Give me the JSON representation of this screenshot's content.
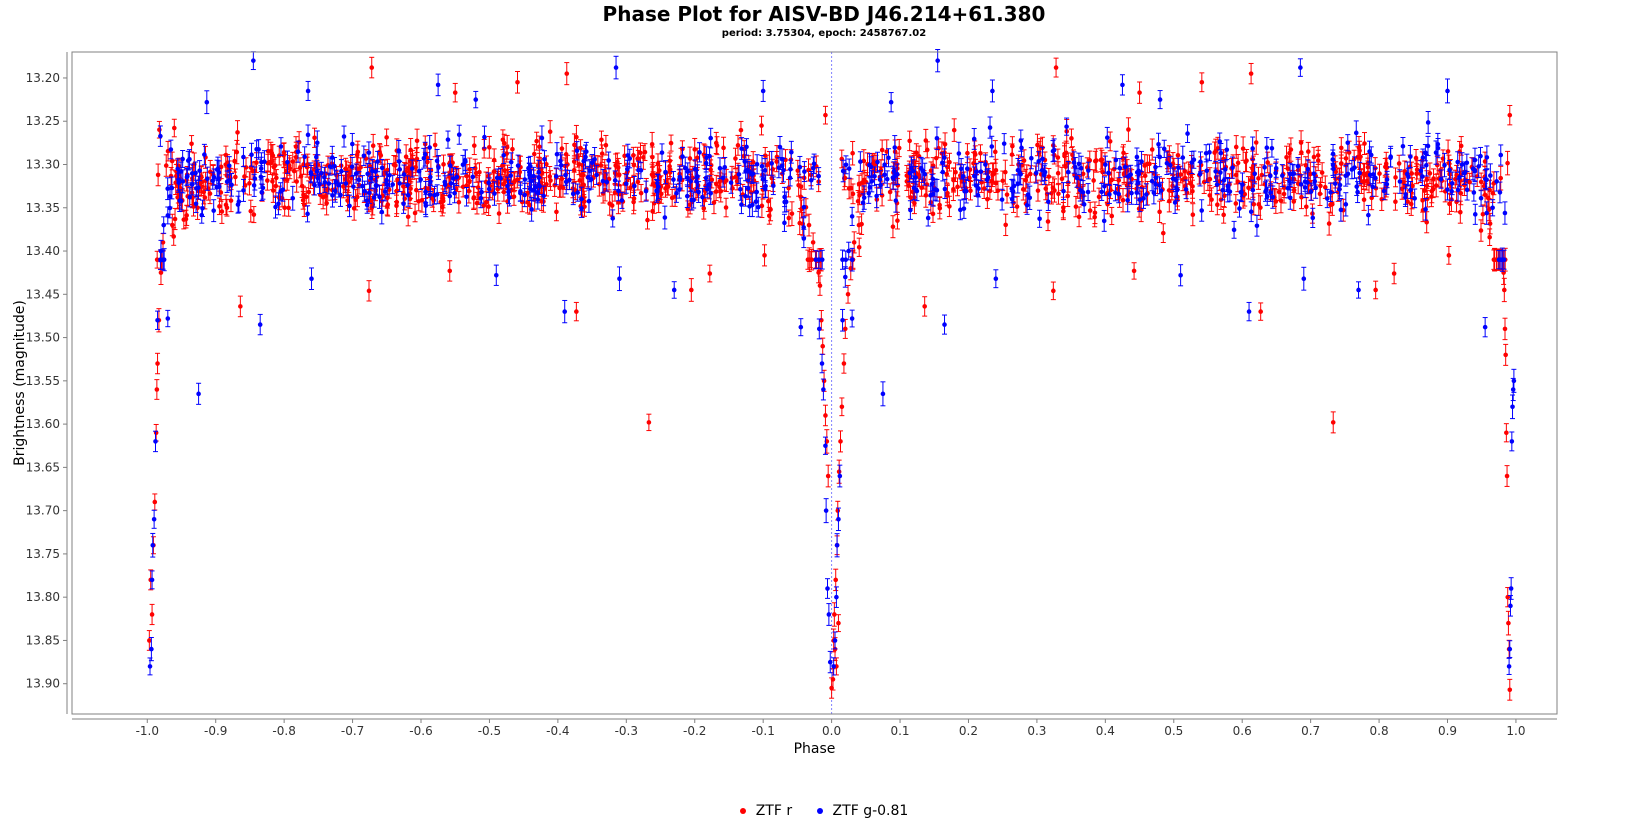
{
  "chart_data": {
    "type": "scatter",
    "title": "Phase Plot for AISV-BD J46.214+61.380",
    "subtitle": "period: 3.75304, epoch: 2458767.02",
    "xlabel": "Phase",
    "ylabel": "Brightness (magnitude)",
    "xlim": [
      -1.11,
      1.06
    ],
    "ylim": [
      13.17,
      13.935
    ],
    "y_inverted": true,
    "x_ticks": [
      "-1.0",
      "-0.9",
      "-0.8",
      "-0.7",
      "-0.6",
      "-0.5",
      "-0.4",
      "-0.3",
      "-0.2",
      "-0.1",
      "0.0",
      "0.1",
      "0.2",
      "0.3",
      "0.4",
      "0.5",
      "0.6",
      "0.7",
      "0.8",
      "0.9",
      "1.0"
    ],
    "y_ticks": [
      "13.20",
      "13.25",
      "13.30",
      "13.35",
      "13.40",
      "13.45",
      "13.50",
      "13.55",
      "13.60",
      "13.65",
      "13.70",
      "13.75",
      "13.80",
      "13.85",
      "13.90"
    ],
    "grid": false,
    "legend_position": "bottom",
    "reference_line_x": 0.0,
    "colors": {
      "ztf_r": "#ff0000",
      "ztf_g": "#0000ff",
      "refline": "#8080ff",
      "axis": "#808080"
    },
    "series": [
      {
        "name": "ZTF r",
        "color": "#ff0000",
        "baseline": 13.315,
        "scatter": 0.03,
        "points": [
          [
            0.0,
            13.905
          ],
          [
            0.003,
            13.85
          ],
          [
            0.004,
            13.82
          ],
          [
            0.006,
            13.78
          ],
          [
            0.008,
            13.74
          ],
          [
            0.009,
            13.7
          ],
          [
            0.011,
            13.655
          ],
          [
            0.013,
            13.62
          ],
          [
            0.015,
            13.58
          ],
          [
            0.018,
            13.53
          ],
          [
            0.02,
            13.49
          ],
          [
            0.024,
            13.45
          ],
          [
            0.028,
            13.42
          ],
          [
            0.033,
            13.39
          ],
          [
            0.04,
            13.37
          ],
          [
            -0.005,
            13.66
          ],
          [
            -0.007,
            13.62
          ],
          [
            -0.009,
            13.59
          ],
          [
            -0.011,
            13.55
          ],
          [
            -0.013,
            13.51
          ],
          [
            -0.015,
            13.48
          ],
          [
            -0.017,
            13.44
          ],
          [
            -0.019,
            13.425
          ],
          [
            -0.022,
            13.41
          ],
          [
            -0.027,
            13.39
          ],
          [
            -0.033,
            13.37
          ],
          [
            0.007,
            13.88
          ],
          [
            0.005,
            13.86
          ],
          [
            0.002,
            13.895
          ],
          [
            0.01,
            13.83
          ],
          [
            -0.864,
            13.464
          ],
          [
            -0.676,
            13.446
          ],
          [
            -0.558,
            13.423
          ],
          [
            -0.55,
            13.217
          ],
          [
            -0.373,
            13.47
          ],
          [
            -0.267,
            13.598
          ],
          [
            -0.205,
            13.445
          ],
          [
            -0.178,
            13.426
          ],
          [
            -0.672,
            13.188
          ],
          [
            -0.387,
            13.195
          ],
          [
            -0.459,
            13.205
          ],
          [
            -0.098,
            13.405
          ],
          [
            -0.009,
            13.243
          ],
          [
            0.136,
            13.464
          ],
          [
            0.324,
            13.446
          ],
          [
            0.442,
            13.423
          ],
          [
            0.45,
            13.217
          ],
          [
            0.627,
            13.47
          ],
          [
            0.733,
            13.598
          ],
          [
            0.795,
            13.445
          ],
          [
            0.822,
            13.426
          ],
          [
            0.328,
            13.188
          ],
          [
            0.613,
            13.195
          ],
          [
            0.541,
            13.205
          ],
          [
            0.902,
            13.405
          ],
          [
            0.991,
            13.243
          ],
          [
            -0.995,
            13.78
          ],
          [
            -0.993,
            13.82
          ],
          [
            -0.991,
            13.74
          ],
          [
            -0.989,
            13.69
          ],
          [
            -0.987,
            13.61
          ],
          [
            -0.986,
            13.56
          ],
          [
            -0.985,
            13.53
          ],
          [
            -0.983,
            13.48
          ],
          [
            -0.98,
            13.425
          ],
          [
            -0.977,
            13.39
          ],
          [
            -0.997,
            13.85
          ],
          [
            0.991,
            13.907
          ],
          [
            0.99,
            13.86
          ],
          [
            0.989,
            13.83
          ],
          [
            0.988,
            13.8
          ],
          [
            0.987,
            13.66
          ],
          [
            0.986,
            13.61
          ],
          [
            0.985,
            13.52
          ],
          [
            0.984,
            13.49
          ],
          [
            0.983,
            13.445
          ],
          [
            0.982,
            13.425
          ]
        ]
      },
      {
        "name": "ZTF g-0.81",
        "color": "#0000ff",
        "baseline": 13.315,
        "scatter": 0.03,
        "points": [
          [
            0.003,
            13.88
          ],
          [
            0.005,
            13.85
          ],
          [
            0.007,
            13.8
          ],
          [
            0.008,
            13.74
          ],
          [
            0.01,
            13.71
          ],
          [
            0.012,
            13.66
          ],
          [
            -0.002,
            13.875
          ],
          [
            -0.004,
            13.82
          ],
          [
            -0.006,
            13.79
          ],
          [
            -0.008,
            13.7
          ],
          [
            -0.009,
            13.625
          ],
          [
            -0.012,
            13.56
          ],
          [
            -0.014,
            13.53
          ],
          [
            -0.018,
            13.49
          ],
          [
            0.016,
            13.48
          ],
          [
            0.02,
            13.43
          ],
          [
            0.025,
            13.4
          ],
          [
            0.03,
            13.36
          ],
          [
            -0.845,
            13.18
          ],
          [
            -0.835,
            13.485
          ],
          [
            -0.765,
            13.215
          ],
          [
            -0.76,
            13.432
          ],
          [
            -0.575,
            13.208
          ],
          [
            -0.52,
            13.225
          ],
          [
            -0.49,
            13.428
          ],
          [
            -0.39,
            13.47
          ],
          [
            -0.315,
            13.188
          ],
          [
            -0.31,
            13.432
          ],
          [
            -0.23,
            13.445
          ],
          [
            -0.1,
            13.215
          ],
          [
            -0.045,
            13.488
          ],
          [
            -0.925,
            13.565
          ],
          [
            -0.97,
            13.478
          ],
          [
            -0.913,
            13.228
          ],
          [
            0.155,
            13.18
          ],
          [
            0.165,
            13.485
          ],
          [
            0.235,
            13.215
          ],
          [
            0.24,
            13.432
          ],
          [
            0.425,
            13.208
          ],
          [
            0.48,
            13.225
          ],
          [
            0.51,
            13.428
          ],
          [
            0.61,
            13.47
          ],
          [
            0.685,
            13.188
          ],
          [
            0.69,
            13.432
          ],
          [
            0.77,
            13.445
          ],
          [
            0.9,
            13.215
          ],
          [
            0.955,
            13.488
          ],
          [
            0.075,
            13.565
          ],
          [
            0.03,
            13.478
          ],
          [
            0.087,
            13.228
          ],
          [
            -0.996,
            13.88
          ],
          [
            -0.994,
            13.86
          ],
          [
            -0.993,
            13.78
          ],
          [
            -0.992,
            13.74
          ],
          [
            -0.99,
            13.71
          ],
          [
            -0.988,
            13.62
          ],
          [
            -0.985,
            13.48
          ],
          [
            -0.98,
            13.4
          ],
          [
            -0.976,
            13.37
          ],
          [
            0.99,
            13.88
          ],
          [
            0.991,
            13.86
          ],
          [
            0.992,
            13.81
          ],
          [
            0.993,
            13.79
          ],
          [
            0.994,
            13.62
          ],
          [
            0.995,
            13.58
          ],
          [
            0.996,
            13.56
          ],
          [
            0.997,
            13.55
          ]
        ]
      }
    ]
  }
}
